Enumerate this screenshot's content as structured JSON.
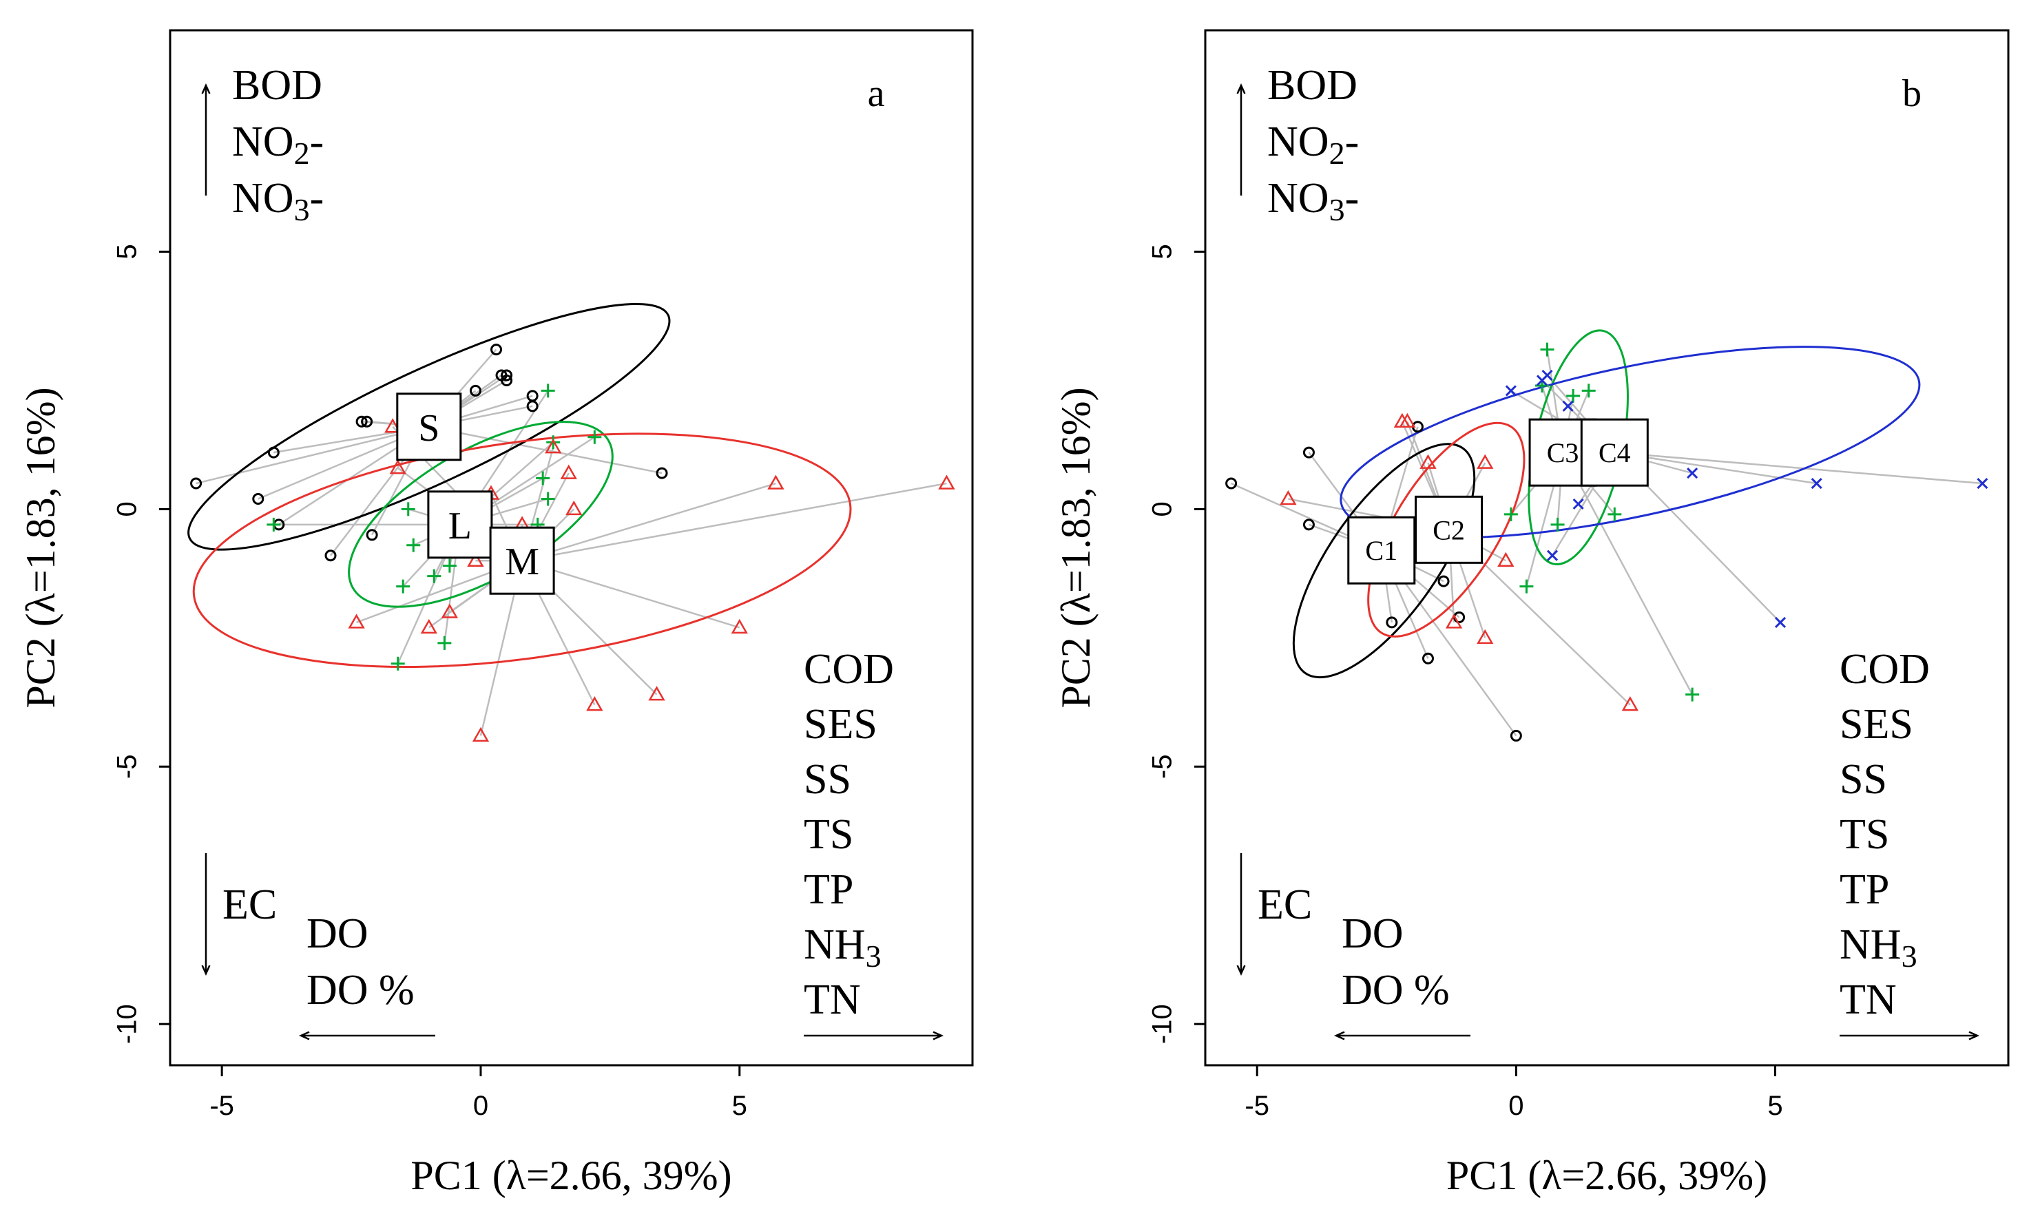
{
  "chart_data": [
    {
      "type": "scatter",
      "panel_label": "a",
      "xlabel": "PC1 (λ=2.66, 39%)",
      "ylabel": "PC2 (λ=1.83, 16%)",
      "xlim": [
        -6,
        9.5
      ],
      "ylim": [
        -10.8,
        9.3
      ],
      "xticks": [
        -5,
        0,
        5
      ],
      "yticks": [
        5,
        0,
        -5,
        -10
      ],
      "xtick_labels": [
        "-5",
        "0",
        "5"
      ],
      "ytick_labels": [
        "5",
        "0",
        "-5",
        "-10"
      ],
      "loadings": {
        "up": [
          "BOD",
          "NO2-",
          "NO3-"
        ],
        "down": [
          "EC"
        ],
        "left": [
          "DO",
          "DO %"
        ],
        "right": [
          "COD",
          "SES",
          "SS",
          "TS",
          "TP",
          "NH3",
          "TN"
        ]
      },
      "groups": [
        {
          "name": "S",
          "color": "#000000",
          "marker": "circle",
          "centroid": [
            -1.0,
            1.6
          ],
          "ellipse": {
            "cx": -1.0,
            "cy": 1.6,
            "rx": 5.1,
            "ry": 1.1,
            "angle_deg": 25
          },
          "points": [
            [
              -5.5,
              0.5
            ],
            [
              -4.3,
              0.2
            ],
            [
              -4.0,
              1.1
            ],
            [
              -3.9,
              -0.3
            ],
            [
              -2.9,
              -0.9
            ],
            [
              -2.3,
              1.7
            ],
            [
              -2.2,
              1.7
            ],
            [
              -2.1,
              -0.5
            ],
            [
              0.3,
              3.1
            ],
            [
              0.4,
              2.6
            ],
            [
              0.5,
              2.6
            ],
            [
              0.5,
              2.5
            ],
            [
              -0.1,
              2.3
            ],
            [
              1.0,
              2.0
            ],
            [
              1.0,
              2.2
            ],
            [
              3.5,
              0.7
            ]
          ]
        },
        {
          "name": "L",
          "color": "#00aa33",
          "marker": "plus",
          "centroid": [
            -0.4,
            -0.3
          ],
          "ellipse": {
            "cx": 0.0,
            "cy": -0.1,
            "rx": 2.85,
            "ry": 1.25,
            "angle_deg": 30
          },
          "points": [
            [
              -4.0,
              -0.3
            ],
            [
              -1.4,
              0.0
            ],
            [
              -1.3,
              -0.7
            ],
            [
              -1.5,
              -1.5
            ],
            [
              -1.6,
              -3.0
            ],
            [
              -0.7,
              -2.6
            ],
            [
              -0.9,
              -1.3
            ],
            [
              1.2,
              0.6
            ],
            [
              1.3,
              2.3
            ],
            [
              1.4,
              1.3
            ],
            [
              1.3,
              0.2
            ],
            [
              2.2,
              1.4
            ],
            [
              1.1,
              -0.3
            ],
            [
              -0.6,
              -1.1
            ]
          ]
        },
        {
          "name": "M",
          "color": "#e8322d",
          "marker": "triangle",
          "centroid": [
            0.8,
            -1.0
          ],
          "ellipse": {
            "cx": 0.8,
            "cy": -0.8,
            "rx": 6.4,
            "ry": 2.1,
            "angle_deg": 8
          },
          "points": [
            [
              -1.7,
              1.6
            ],
            [
              -1.6,
              0.8
            ],
            [
              -2.4,
              -2.2
            ],
            [
              -1.0,
              -2.3
            ],
            [
              -0.6,
              -2.0
            ],
            [
              -0.1,
              -1.0
            ],
            [
              0.2,
              0.3
            ],
            [
              0.8,
              -0.3
            ],
            [
              1.4,
              1.2
            ],
            [
              1.7,
              0.7
            ],
            [
              1.8,
              0.0
            ],
            [
              0.0,
              -4.4
            ],
            [
              2.2,
              -3.8
            ],
            [
              3.4,
              -3.6
            ],
            [
              5.0,
              -2.3
            ],
            [
              5.7,
              0.5
            ],
            [
              9.0,
              0.5
            ]
          ]
        }
      ]
    },
    {
      "type": "scatter",
      "panel_label": "b",
      "xlabel": "PC1 (λ=2.66, 39%)",
      "ylabel": "PC2 (λ=1.83, 16%)",
      "xlim": [
        -6,
        9.5
      ],
      "ylim": [
        -10.8,
        9.3
      ],
      "xticks": [
        -5,
        0,
        5
      ],
      "yticks": [
        5,
        0,
        -5,
        -10
      ],
      "xtick_labels": [
        "-5",
        "0",
        "5"
      ],
      "ytick_labels": [
        "5",
        "0",
        "-5",
        "-10"
      ],
      "loadings": {
        "up": [
          "BOD",
          "NO2-",
          "NO3-"
        ],
        "down": [
          "EC"
        ],
        "left": [
          "DO",
          "DO %"
        ],
        "right": [
          "COD",
          "SES",
          "SS",
          "TS",
          "TP",
          "NH3",
          "TN"
        ]
      },
      "groups": [
        {
          "name": "C1",
          "color": "#000000",
          "marker": "circle",
          "centroid": [
            -2.6,
            -0.8
          ],
          "ellipse": {
            "cx": -2.55,
            "cy": -1.0,
            "rx": 2.65,
            "ry": 1.05,
            "angle_deg": 55
          },
          "points": [
            [
              -5.5,
              0.5
            ],
            [
              -4.0,
              1.1
            ],
            [
              -4.0,
              -0.3
            ],
            [
              -1.9,
              1.6
            ],
            [
              -1.4,
              -1.4
            ],
            [
              -1.1,
              -2.1
            ],
            [
              -2.4,
              -2.2
            ],
            [
              -1.7,
              -2.9
            ],
            [
              0.0,
              -4.4
            ]
          ]
        },
        {
          "name": "C2",
          "color": "#e8322d",
          "marker": "triangle",
          "centroid": [
            -1.3,
            -0.4
          ],
          "ellipse": {
            "cx": -1.35,
            "cy": -0.4,
            "rx": 2.35,
            "ry": 1.0,
            "angle_deg": 58
          },
          "points": [
            [
              -4.4,
              0.2
            ],
            [
              -2.2,
              1.7
            ],
            [
              -2.1,
              1.7
            ],
            [
              -1.7,
              0.9
            ],
            [
              -0.6,
              0.9
            ],
            [
              -0.2,
              -1.0
            ],
            [
              -0.6,
              -2.5
            ],
            [
              -1.2,
              -2.2
            ],
            [
              2.2,
              -3.8
            ]
          ]
        },
        {
          "name": "C3",
          "color": "#00aa33",
          "marker": "plus",
          "centroid": [
            0.9,
            1.1
          ],
          "ellipse": {
            "cx": 1.2,
            "cy": 1.2,
            "rx": 2.3,
            "ry": 0.85,
            "angle_deg": 78
          },
          "points": [
            [
              0.6,
              3.1
            ],
            [
              0.5,
              2.4
            ],
            [
              1.1,
              2.2
            ],
            [
              1.4,
              2.3
            ],
            [
              1.9,
              -0.1
            ],
            [
              0.8,
              -0.3
            ],
            [
              0.2,
              -1.5
            ],
            [
              -0.1,
              -0.1
            ],
            [
              3.4,
              -3.6
            ]
          ]
        },
        {
          "name": "C4",
          "color": "#1f2fd1",
          "marker": "x",
          "centroid": [
            1.9,
            1.1
          ],
          "ellipse": {
            "cx": 2.2,
            "cy": 1.3,
            "rx": 5.7,
            "ry": 1.45,
            "angle_deg": 12
          },
          "points": [
            [
              -0.1,
              2.3
            ],
            [
              0.5,
              2.5
            ],
            [
              0.6,
              2.6
            ],
            [
              1.0,
              2.0
            ],
            [
              1.2,
              0.1
            ],
            [
              0.7,
              -0.9
            ],
            [
              3.4,
              0.7
            ],
            [
              5.1,
              -2.2
            ],
            [
              5.8,
              0.5
            ],
            [
              9.0,
              0.5
            ]
          ]
        }
      ]
    }
  ]
}
